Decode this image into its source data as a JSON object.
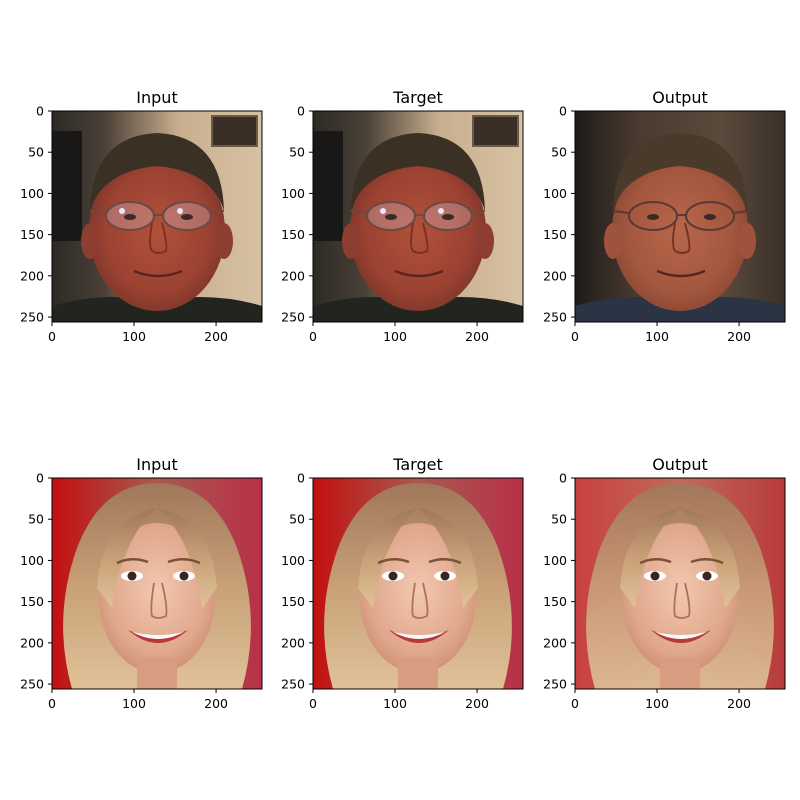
{
  "chart_data": {
    "type": "image-grid",
    "rows": 2,
    "cols": 3,
    "image_extent": [
      0,
      256
    ],
    "x_ticks": [
      0,
      100,
      200
    ],
    "y_ticks": [
      0,
      50,
      100,
      150,
      200,
      250
    ],
    "panels": [
      {
        "title": "Input",
        "subject": "older-man-glasses",
        "variant": "original"
      },
      {
        "title": "Target",
        "subject": "older-man-glasses",
        "variant": "original"
      },
      {
        "title": "Output",
        "subject": "older-man-glasses",
        "variant": "reconstruction"
      },
      {
        "title": "Input",
        "subject": "blonde-woman-smiling",
        "variant": "original"
      },
      {
        "title": "Target",
        "subject": "blonde-woman-smiling",
        "variant": "original"
      },
      {
        "title": "Output",
        "subject": "blonde-woman-smiling",
        "variant": "reconstruction"
      }
    ]
  }
}
